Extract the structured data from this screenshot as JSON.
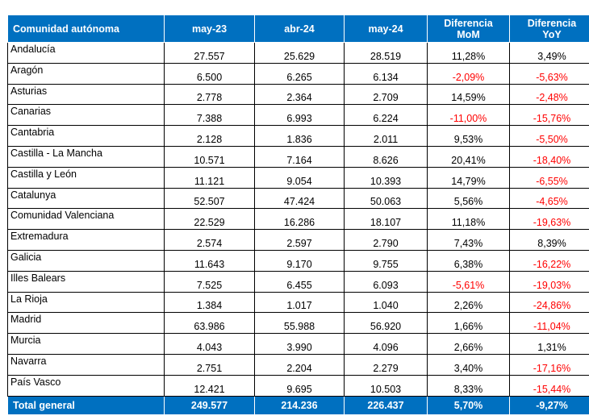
{
  "table": {
    "headers": [
      "Comunidad autónoma",
      "may-23",
      "abr-24",
      "may-24",
      "Diferencia\nMoM",
      "Diferencia\nYoY"
    ],
    "rows": [
      [
        "Andalucía",
        "27.557",
        "25.629",
        "28.519",
        "11,28%",
        "3,49%"
      ],
      [
        "Aragón",
        "6.500",
        "6.265",
        "6.134",
        "-2,09%",
        "-5,63%"
      ],
      [
        "Asturias",
        "2.778",
        "2.364",
        "2.709",
        "14,59%",
        "-2,48%"
      ],
      [
        "Canarias",
        "7.388",
        "6.993",
        "6.224",
        "-11,00%",
        "-15,76%"
      ],
      [
        "Cantabria",
        "2.128",
        "1.836",
        "2.011",
        "9,53%",
        "-5,50%"
      ],
      [
        "Castilla - La Mancha",
        "10.571",
        "7.164",
        "8.626",
        "20,41%",
        "-18,40%"
      ],
      [
        "Castilla y León",
        "11.121",
        "9.054",
        "10.393",
        "14,79%",
        "-6,55%"
      ],
      [
        "Catalunya",
        "52.507",
        "47.424",
        "50.063",
        "5,56%",
        "-4,65%"
      ],
      [
        "Comunidad Valenciana",
        "22.529",
        "16.286",
        "18.107",
        "11,18%",
        "-19,63%"
      ],
      [
        "Extremadura",
        "2.574",
        "2.597",
        "2.790",
        "7,43%",
        "8,39%"
      ],
      [
        "Galicia",
        "11.643",
        "9.170",
        "9.755",
        "6,38%",
        "-16,22%"
      ],
      [
        "Illes Balears",
        "7.525",
        "6.455",
        "6.093",
        "-5,61%",
        "-19,03%"
      ],
      [
        "La Rioja",
        "1.384",
        "1.017",
        "1.040",
        "2,26%",
        "-24,86%"
      ],
      [
        "Madrid",
        "63.986",
        "55.988",
        "56.920",
        "1,66%",
        "-11,04%"
      ],
      [
        "Murcia",
        "4.043",
        "3.990",
        "4.096",
        "2,66%",
        "1,31%"
      ],
      [
        "Navarra",
        "2.751",
        "2.204",
        "2.279",
        "3,40%",
        "-17,16%"
      ],
      [
        "País Vasco",
        "12.421",
        "9.695",
        "10.503",
        "8,33%",
        "-15,44%"
      ]
    ],
    "total": [
      "Total general",
      "249.577",
      "214.236",
      "226.437",
      "5,70%",
      "-9,27%"
    ]
  },
  "colors": {
    "header_bg": "#0070c0",
    "header_text": "#ffffff",
    "negative": "#ff0000",
    "text": "#000000"
  }
}
